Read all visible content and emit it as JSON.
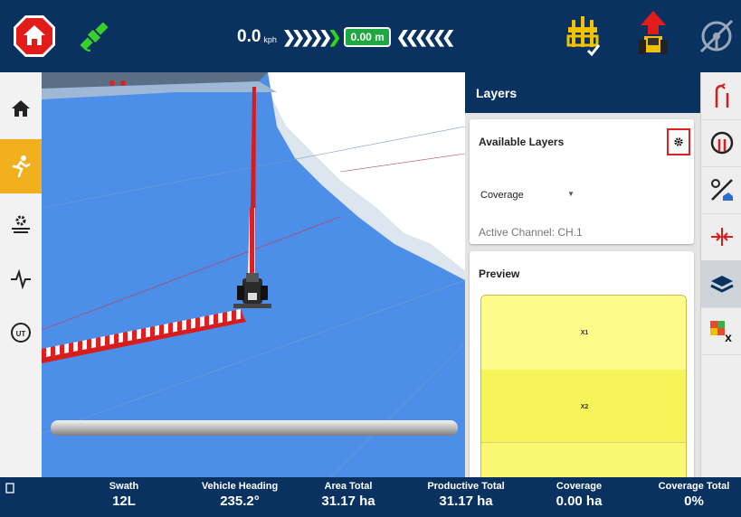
{
  "top_bar": {
    "speed_value": "0.0",
    "speed_unit": "kph",
    "left_chevrons": "❯❯❯❯❯",
    "right_chevrons": "❮❮❮❮❮❮",
    "offset_value": "0.00 m"
  },
  "layers_panel": {
    "header_title": "Layers",
    "available_title": "Available Layers",
    "selected_layer": "Coverage",
    "active_channel": "Active Channel: CH.1",
    "preview_title": "Preview",
    "zones": [
      "X1",
      "X2"
    ]
  },
  "bottom_stats": [
    {
      "label": "Swath",
      "value": "12L"
    },
    {
      "label": "Vehicle Heading",
      "value": "235.2°"
    },
    {
      "label": "Area Total",
      "value": "31.17 ha"
    },
    {
      "label": "Productive Total",
      "value": "31.17 ha"
    },
    {
      "label": "Coverage",
      "value": "0.00 ha"
    },
    {
      "label": "Coverage Total",
      "value": "0%"
    }
  ],
  "left_nav": [
    {
      "icon": "home-icon",
      "active": false
    },
    {
      "icon": "runner-icon",
      "active": true
    },
    {
      "icon": "field-gear-icon",
      "active": false
    },
    {
      "icon": "signal-pulse-icon",
      "active": false
    },
    {
      "icon": "ut-icon",
      "active": false
    }
  ],
  "right_toolbar": [
    {
      "icon": "guidance-lines-icon",
      "active": false
    },
    {
      "icon": "turn-pattern-icon",
      "active": false
    },
    {
      "icon": "boundary-pin-icon",
      "active": false
    },
    {
      "icon": "nudge-arrows-icon",
      "active": false
    },
    {
      "icon": "layers-icon",
      "active": true
    },
    {
      "icon": "prescription-map-icon",
      "active": false
    }
  ],
  "colors": {
    "header_blue": "#0a3260",
    "active_nav": "#f2b01e",
    "map_coverage_blue": "#4d8ee8",
    "guidance_red": "#e02020",
    "preview_yellow": "#fdfb8a",
    "offset_green": "#1fa842"
  }
}
